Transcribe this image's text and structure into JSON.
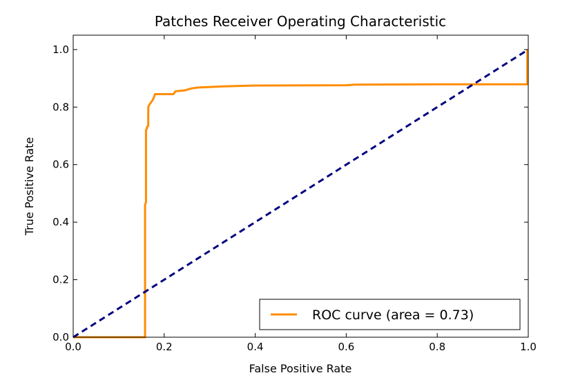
{
  "chart_data": {
    "type": "line",
    "title": "Patches Receiver Operating Characteristic",
    "xlabel": "False Positive Rate",
    "ylabel": "True Positive Rate",
    "xlim": [
      0.0,
      1.0
    ],
    "ylim": [
      0.0,
      1.05
    ],
    "xticks": [
      0.0,
      0.2,
      0.4,
      0.6,
      0.8,
      1.0
    ],
    "yticks": [
      0.0,
      0.2,
      0.4,
      0.6,
      0.8,
      1.0
    ],
    "xtick_labels": [
      "0.0",
      "0.2",
      "0.4",
      "0.6",
      "0.8",
      "1.0"
    ],
    "ytick_labels": [
      "0.0",
      "0.2",
      "0.4",
      "0.6",
      "0.8",
      "1.0"
    ],
    "grid": false,
    "legend_position": "lower-right",
    "series": [
      {
        "name": "ROC curve (area = 0.73)",
        "color": "#ff8c00",
        "style": "solid",
        "x": [
          0.0,
          0.158,
          0.158,
          0.16,
          0.16,
          0.162,
          0.162,
          0.165,
          0.165,
          0.168,
          0.175,
          0.18,
          0.18,
          0.22,
          0.225,
          0.245,
          0.26,
          0.275,
          0.33,
          0.4,
          0.6,
          0.62,
          0.8,
          0.998,
          0.998
        ],
        "y": [
          0.0,
          0.0,
          0.46,
          0.47,
          0.72,
          0.725,
          0.73,
          0.735,
          0.8,
          0.81,
          0.825,
          0.845,
          0.845,
          0.845,
          0.855,
          0.858,
          0.865,
          0.868,
          0.872,
          0.875,
          0.876,
          0.878,
          0.879,
          0.879,
          1.0
        ]
      },
      {
        "name": "",
        "color": "#000080",
        "style": "dashed",
        "x": [
          0.0,
          1.0
        ],
        "y": [
          0.0,
          1.0
        ]
      }
    ]
  }
}
